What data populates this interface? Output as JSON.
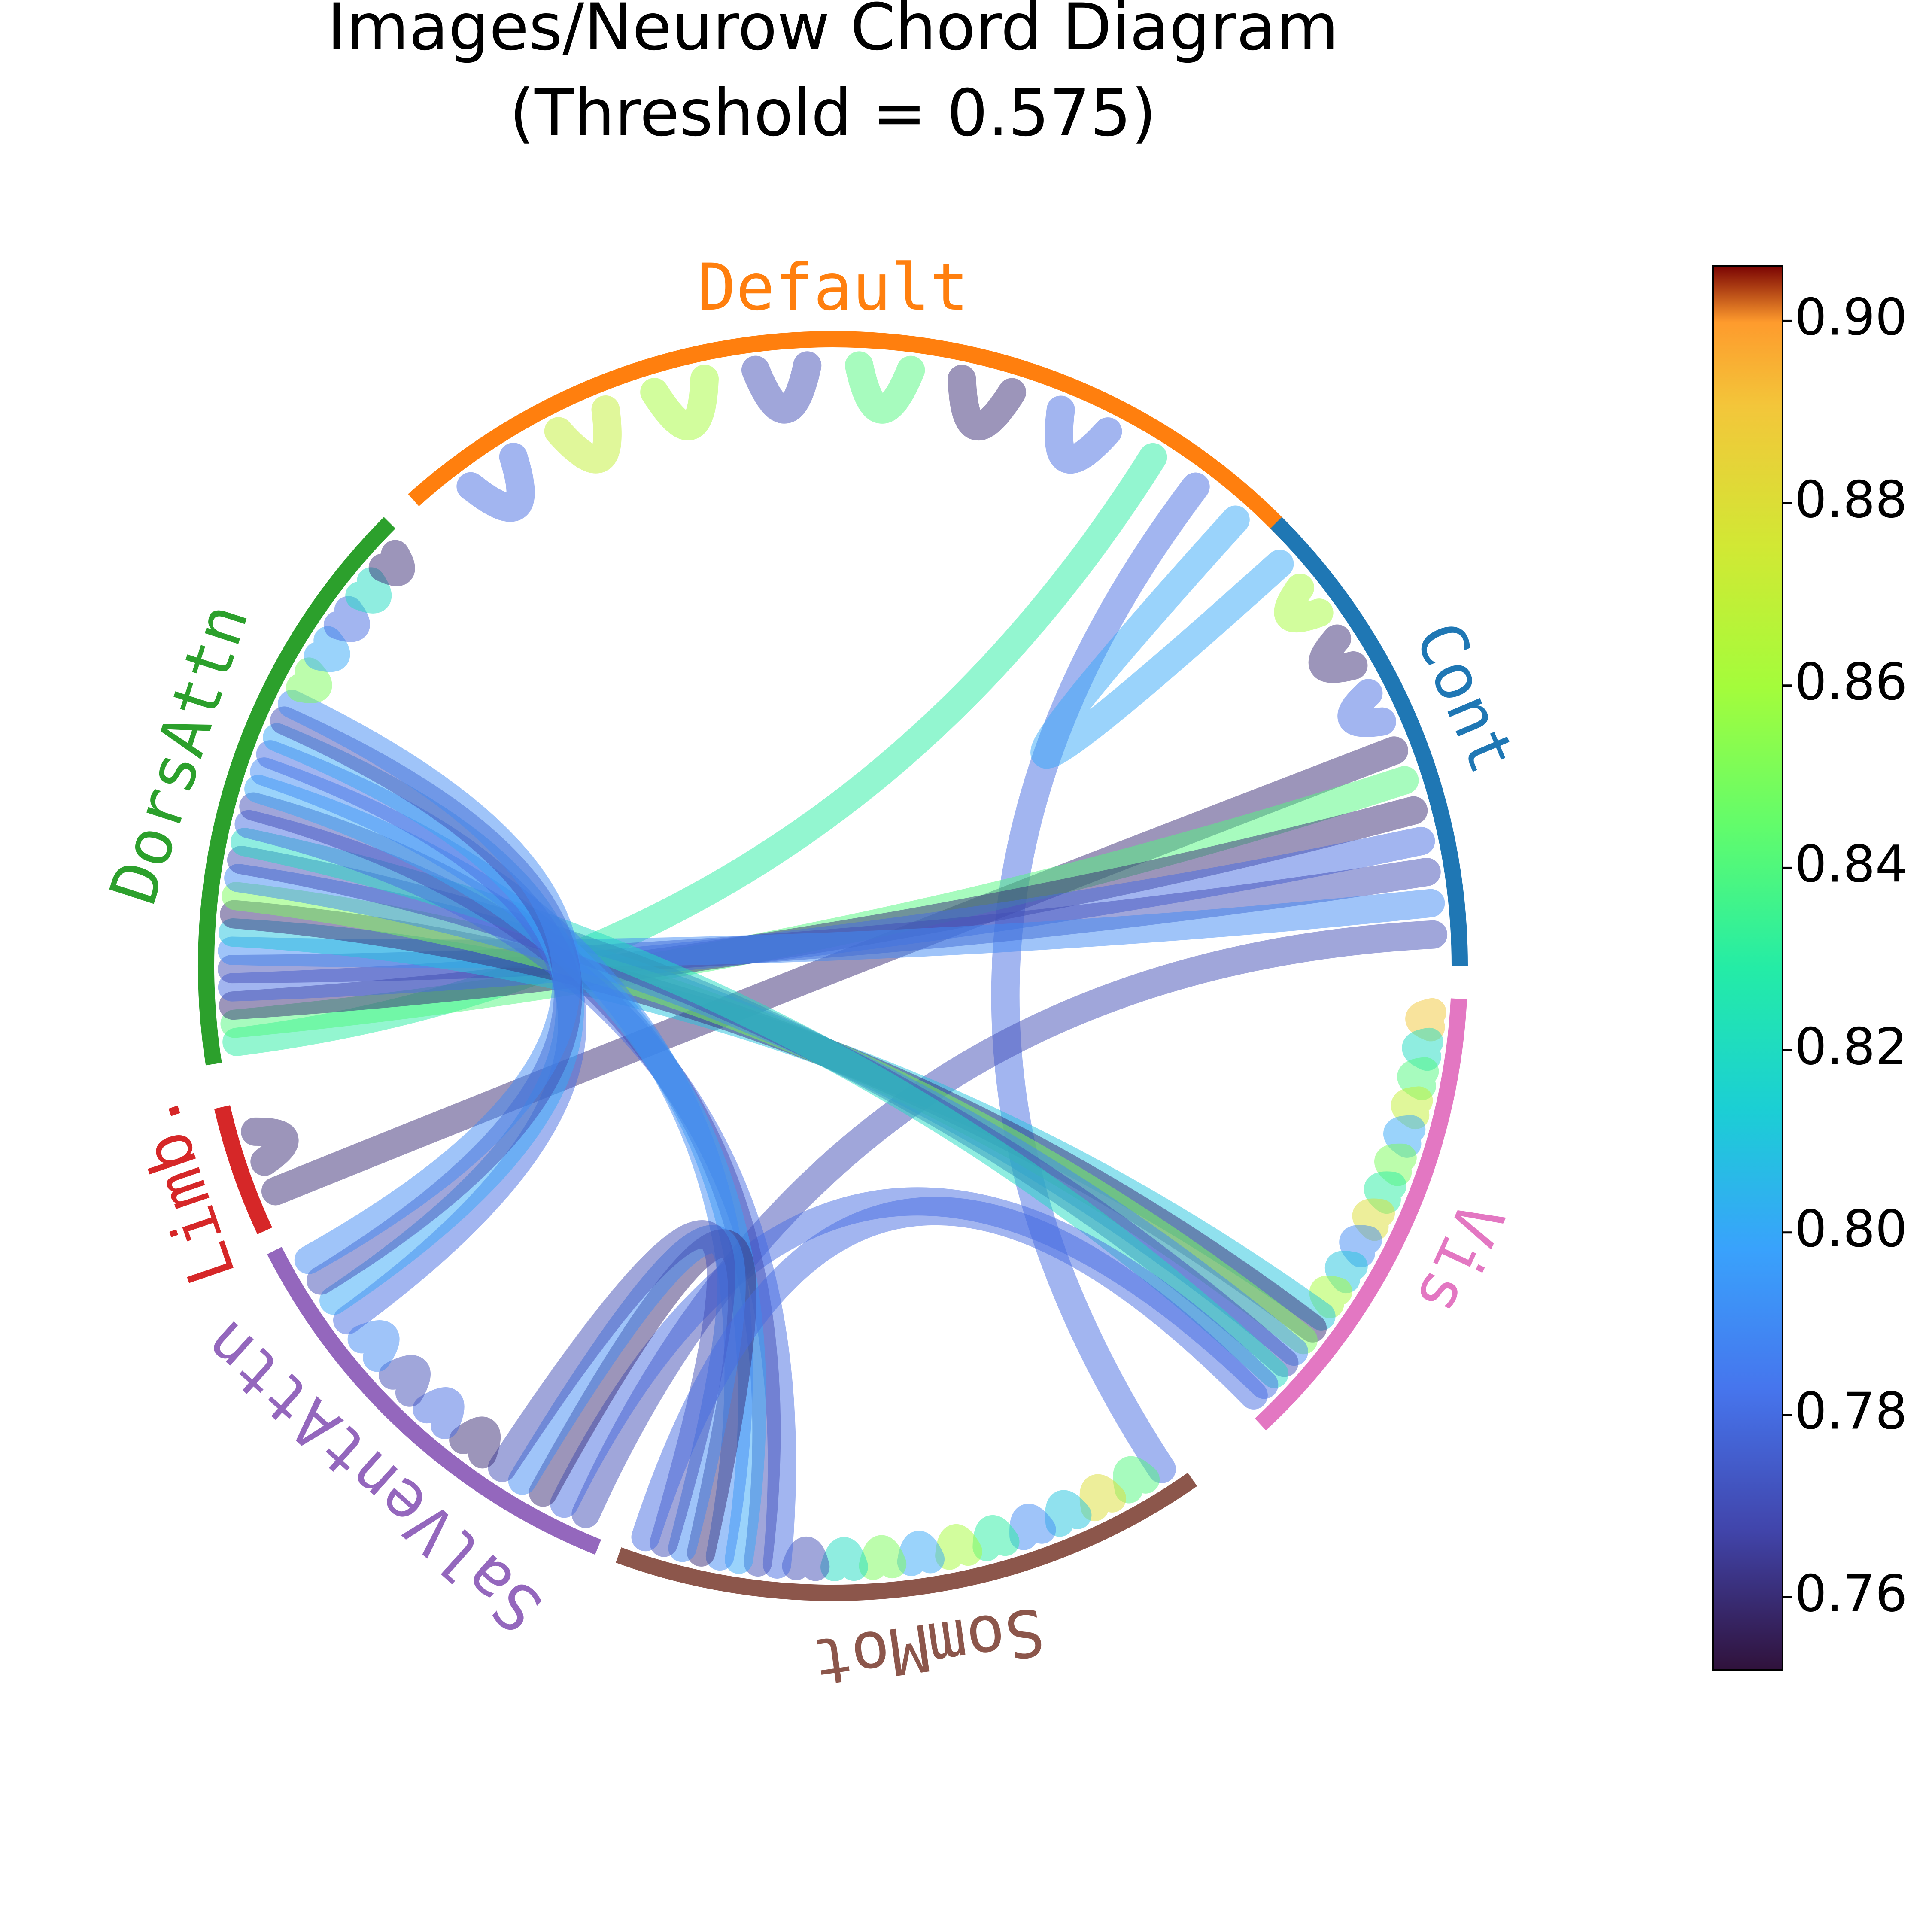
{
  "title": {
    "line1": "Images/Neurow Chord Diagram",
    "line2": "(Threshold = 0.575)"
  },
  "networks": [
    {
      "name": "Default",
      "color": "#ff7f0e"
    },
    {
      "name": "Cont",
      "color": "#1f77b4"
    },
    {
      "name": "Vis",
      "color": "#e377c2"
    },
    {
      "name": "SomMot",
      "color": "#8c564b"
    },
    {
      "name": "SalVentAttn",
      "color": "#9467bd"
    },
    {
      "name": "Limb.",
      "color": "#d62728"
    },
    {
      "name": "DorsAttn",
      "color": "#2ca02c"
    }
  ],
  "colorbar": {
    "colormap": "turbo",
    "min": 0.752,
    "max": 0.906,
    "ticks": [
      "0.76",
      "0.78",
      "0.80",
      "0.82",
      "0.84",
      "0.86",
      "0.88",
      "0.90"
    ]
  },
  "chords": [
    {
      "a": "Default",
      "b": "Default",
      "w": 0.78
    },
    {
      "a": "Default",
      "b": "Default",
      "w": 0.87
    },
    {
      "a": "Default",
      "b": "Default",
      "w": 0.86
    },
    {
      "a": "Default",
      "b": "Default",
      "w": 0.77
    },
    {
      "a": "Default",
      "b": "Default",
      "w": 0.84
    },
    {
      "a": "Default",
      "b": "Default",
      "w": 0.76
    },
    {
      "a": "Default",
      "b": "Default",
      "w": 0.78
    },
    {
      "a": "Default",
      "b": "DorsAttn",
      "w": 0.83
    },
    {
      "a": "Default",
      "b": "SomMot",
      "w": 0.78
    },
    {
      "a": "Default",
      "b": "Cont",
      "w": 0.8
    },
    {
      "a": "Cont",
      "b": "Cont",
      "w": 0.86
    },
    {
      "a": "Cont",
      "b": "Cont",
      "w": 0.76
    },
    {
      "a": "Cont",
      "b": "Cont",
      "w": 0.78
    },
    {
      "a": "Cont",
      "b": "Limb.",
      "w": 0.76
    },
    {
      "a": "Cont",
      "b": "DorsAttn",
      "w": 0.84
    },
    {
      "a": "Cont",
      "b": "DorsAttn",
      "w": 0.76
    },
    {
      "a": "Cont",
      "b": "DorsAttn",
      "w": 0.78
    },
    {
      "a": "Cont",
      "b": "DorsAttn",
      "w": 0.77
    },
    {
      "a": "Cont",
      "b": "DorsAttn",
      "w": 0.79
    },
    {
      "a": "Cont",
      "b": "SalVentAttn",
      "w": 0.77
    },
    {
      "a": "Limb.",
      "b": "Limb.",
      "w": 0.76
    },
    {
      "a": "Vis",
      "b": "Vis",
      "w": 0.89
    },
    {
      "a": "Vis",
      "b": "Vis",
      "w": 0.82
    },
    {
      "a": "Vis",
      "b": "Vis",
      "w": 0.84
    },
    {
      "a": "Vis",
      "b": "Vis",
      "w": 0.87
    },
    {
      "a": "Vis",
      "b": "Vis",
      "w": 0.8
    },
    {
      "a": "Vis",
      "b": "Vis",
      "w": 0.85
    },
    {
      "a": "Vis",
      "b": "Vis",
      "w": 0.83
    },
    {
      "a": "Vis",
      "b": "Vis",
      "w": 0.88
    },
    {
      "a": "Vis",
      "b": "Vis",
      "w": 0.79
    },
    {
      "a": "Vis",
      "b": "Vis",
      "w": 0.81
    },
    {
      "a": "Vis",
      "b": "Vis",
      "w": 0.86
    },
    {
      "a": "Vis",
      "b": "DorsAttn",
      "w": 0.81
    },
    {
      "a": "Vis",
      "b": "DorsAttn",
      "w": 0.76
    },
    {
      "a": "Vis",
      "b": "DorsAttn",
      "w": 0.85
    },
    {
      "a": "Vis",
      "b": "DorsAttn",
      "w": 0.79
    },
    {
      "a": "Vis",
      "b": "DorsAttn",
      "w": 0.77
    },
    {
      "a": "Vis",
      "b": "DorsAttn",
      "w": 0.82
    },
    {
      "a": "Vis",
      "b": "SalVentAttn",
      "w": 0.78
    },
    {
      "a": "SomMot",
      "b": "SomMot",
      "w": 0.84
    },
    {
      "a": "SomMot",
      "b": "SomMot",
      "w": 0.88
    },
    {
      "a": "SomMot",
      "b": "SomMot",
      "w": 0.81
    },
    {
      "a": "SomMot",
      "b": "SomMot",
      "w": 0.79
    },
    {
      "a": "SomMot",
      "b": "SomMot",
      "w": 0.83
    },
    {
      "a": "SomMot",
      "b": "SomMot",
      "w": 0.86
    },
    {
      "a": "SomMot",
      "b": "SomMot",
      "w": 0.8
    },
    {
      "a": "SomMot",
      "b": "SomMot",
      "w": 0.85
    },
    {
      "a": "SomMot",
      "b": "SomMot",
      "w": 0.82
    },
    {
      "a": "SomMot",
      "b": "SomMot",
      "w": 0.77
    },
    {
      "a": "SomMot",
      "b": "DorsAttn",
      "w": 0.78
    },
    {
      "a": "SomMot",
      "b": "DorsAttn",
      "w": 0.77
    },
    {
      "a": "SomMot",
      "b": "DorsAttn",
      "w": 0.8
    },
    {
      "a": "SomMot",
      "b": "DorsAttn",
      "w": 0.79
    },
    {
      "a": "SomMot",
      "b": "SalVentAttn",
      "w": 0.76
    },
    {
      "a": "SomMot",
      "b": "SalVentAttn",
      "w": 0.79
    },
    {
      "a": "SomMot",
      "b": "SalVentAttn",
      "w": 0.77
    },
    {
      "a": "SomMot",
      "b": "Vis",
      "w": 0.78
    },
    {
      "a": "SalVentAttn",
      "b": "SalVentAttn",
      "w": 0.76
    },
    {
      "a": "SalVentAttn",
      "b": "SalVentAttn",
      "w": 0.78
    },
    {
      "a": "SalVentAttn",
      "b": "SalVentAttn",
      "w": 0.77
    },
    {
      "a": "SalVentAttn",
      "b": "SalVentAttn",
      "w": 0.79
    },
    {
      "a": "SalVentAttn",
      "b": "DorsAttn",
      "w": 0.78
    },
    {
      "a": "SalVentAttn",
      "b": "DorsAttn",
      "w": 0.8
    },
    {
      "a": "SalVentAttn",
      "b": "DorsAttn",
      "w": 0.77
    },
    {
      "a": "SalVentAttn",
      "b": "DorsAttn",
      "w": 0.79
    },
    {
      "a": "DorsAttn",
      "b": "DorsAttn",
      "w": 0.85
    },
    {
      "a": "DorsAttn",
      "b": "DorsAttn",
      "w": 0.8
    },
    {
      "a": "DorsAttn",
      "b": "DorsAttn",
      "w": 0.78
    },
    {
      "a": "DorsAttn",
      "b": "DorsAttn",
      "w": 0.82
    },
    {
      "a": "DorsAttn",
      "b": "DorsAttn",
      "w": 0.76
    }
  ]
}
